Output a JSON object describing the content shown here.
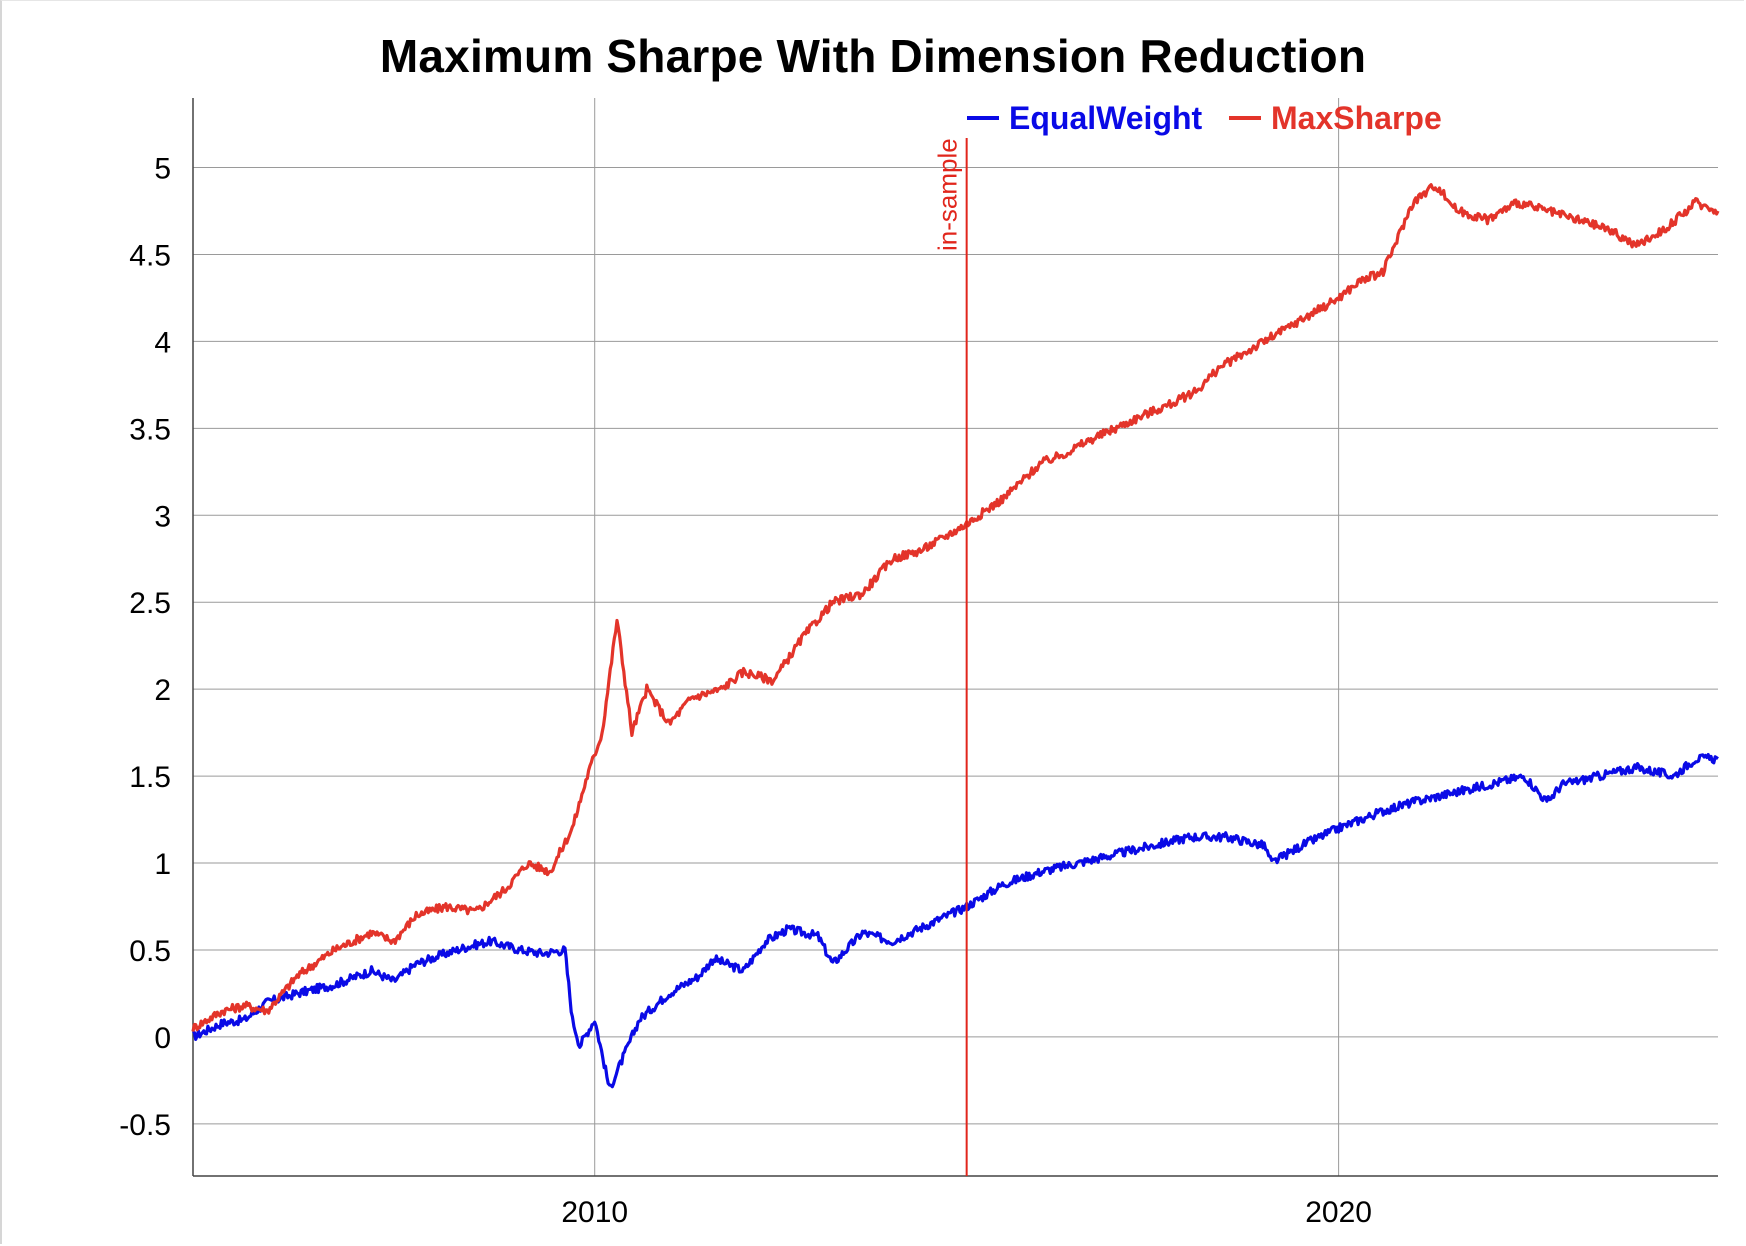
{
  "chart_data": {
    "type": "line",
    "title": "Maximum Sharpe With Dimension Reduction",
    "xlabel": "",
    "ylabel": "",
    "xlim": [
      2004.6,
      2025.1
    ],
    "ylim": [
      -0.8,
      5.4
    ],
    "yticks": [
      "-0.5",
      "0",
      "0.5",
      "1",
      "1.5",
      "2",
      "2.5",
      "3",
      "3.5",
      "4",
      "4.5",
      "5"
    ],
    "xticks": [
      "2010",
      "2020"
    ],
    "grid": true,
    "legend_position": "top-right",
    "vline": {
      "x": 2015.0,
      "label": "in-sample",
      "color": "#e1261c"
    },
    "series": [
      {
        "name": "EqualWeight",
        "color": "#0a0ae6",
        "points": [
          [
            2004.6,
            0.0
          ],
          [
            2005.0,
            0.08
          ],
          [
            2005.3,
            0.1
          ],
          [
            2005.6,
            0.2
          ],
          [
            2006.0,
            0.25
          ],
          [
            2006.5,
            0.3
          ],
          [
            2007.0,
            0.38
          ],
          [
            2007.3,
            0.32
          ],
          [
            2007.6,
            0.42
          ],
          [
            2008.0,
            0.48
          ],
          [
            2008.3,
            0.52
          ],
          [
            2008.6,
            0.55
          ],
          [
            2009.0,
            0.5
          ],
          [
            2009.3,
            0.48
          ],
          [
            2009.6,
            0.5
          ],
          [
            2009.7,
            0.1
          ],
          [
            2009.8,
            -0.05
          ],
          [
            2010.0,
            0.1
          ],
          [
            2010.2,
            -0.3
          ],
          [
            2010.4,
            -0.1
          ],
          [
            2010.6,
            0.1
          ],
          [
            2011.0,
            0.25
          ],
          [
            2011.4,
            0.35
          ],
          [
            2011.6,
            0.45
          ],
          [
            2012.0,
            0.38
          ],
          [
            2012.3,
            0.55
          ],
          [
            2012.6,
            0.62
          ],
          [
            2013.0,
            0.58
          ],
          [
            2013.2,
            0.42
          ],
          [
            2013.6,
            0.6
          ],
          [
            2014.0,
            0.55
          ],
          [
            2014.5,
            0.65
          ],
          [
            2015.0,
            0.75
          ],
          [
            2015.5,
            0.88
          ],
          [
            2016.0,
            0.95
          ],
          [
            2016.5,
            1.0
          ],
          [
            2017.0,
            1.05
          ],
          [
            2017.5,
            1.1
          ],
          [
            2018.0,
            1.15
          ],
          [
            2018.5,
            1.15
          ],
          [
            2019.0,
            1.1
          ],
          [
            2019.1,
            1.0
          ],
          [
            2019.5,
            1.1
          ],
          [
            2020.0,
            1.2
          ],
          [
            2020.3,
            1.25
          ],
          [
            2020.6,
            1.3
          ],
          [
            2021.0,
            1.35
          ],
          [
            2021.5,
            1.4
          ],
          [
            2022.0,
            1.45
          ],
          [
            2022.5,
            1.5
          ],
          [
            2022.8,
            1.35
          ],
          [
            2023.0,
            1.45
          ],
          [
            2023.5,
            1.5
          ],
          [
            2024.0,
            1.55
          ],
          [
            2024.5,
            1.5
          ],
          [
            2024.8,
            1.6
          ],
          [
            2025.1,
            1.6
          ]
        ]
      },
      {
        "name": "MaxSharpe",
        "color": "#e3342a",
        "points": [
          [
            2004.6,
            0.05
          ],
          [
            2005.0,
            0.15
          ],
          [
            2005.3,
            0.18
          ],
          [
            2005.6,
            0.15
          ],
          [
            2006.0,
            0.35
          ],
          [
            2006.5,
            0.5
          ],
          [
            2007.0,
            0.6
          ],
          [
            2007.3,
            0.55
          ],
          [
            2007.6,
            0.7
          ],
          [
            2008.0,
            0.75
          ],
          [
            2008.4,
            0.72
          ],
          [
            2008.8,
            0.85
          ],
          [
            2009.1,
            1.0
          ],
          [
            2009.4,
            0.95
          ],
          [
            2009.7,
            1.2
          ],
          [
            2009.9,
            1.5
          ],
          [
            2010.1,
            1.75
          ],
          [
            2010.3,
            2.4
          ],
          [
            2010.5,
            1.75
          ],
          [
            2010.7,
            2.0
          ],
          [
            2011.0,
            1.8
          ],
          [
            2011.3,
            1.95
          ],
          [
            2011.7,
            2.0
          ],
          [
            2012.0,
            2.1
          ],
          [
            2012.4,
            2.05
          ],
          [
            2012.8,
            2.3
          ],
          [
            2013.2,
            2.5
          ],
          [
            2013.6,
            2.55
          ],
          [
            2014.0,
            2.75
          ],
          [
            2014.4,
            2.8
          ],
          [
            2014.8,
            2.9
          ],
          [
            2015.0,
            2.95
          ],
          [
            2015.5,
            3.1
          ],
          [
            2016.0,
            3.3
          ],
          [
            2016.3,
            3.35
          ],
          [
            2016.6,
            3.42
          ],
          [
            2017.0,
            3.5
          ],
          [
            2017.4,
            3.58
          ],
          [
            2017.8,
            3.65
          ],
          [
            2018.1,
            3.72
          ],
          [
            2018.4,
            3.85
          ],
          [
            2018.8,
            3.95
          ],
          [
            2019.2,
            4.05
          ],
          [
            2019.6,
            4.15
          ],
          [
            2020.0,
            4.25
          ],
          [
            2020.3,
            4.35
          ],
          [
            2020.6,
            4.4
          ],
          [
            2021.0,
            4.8
          ],
          [
            2021.3,
            4.9
          ],
          [
            2021.6,
            4.75
          ],
          [
            2022.0,
            4.7
          ],
          [
            2022.4,
            4.8
          ],
          [
            2022.8,
            4.75
          ],
          [
            2023.2,
            4.7
          ],
          [
            2023.6,
            4.65
          ],
          [
            2024.0,
            4.55
          ],
          [
            2024.4,
            4.65
          ],
          [
            2024.8,
            4.8
          ],
          [
            2025.1,
            4.75
          ]
        ]
      }
    ]
  }
}
